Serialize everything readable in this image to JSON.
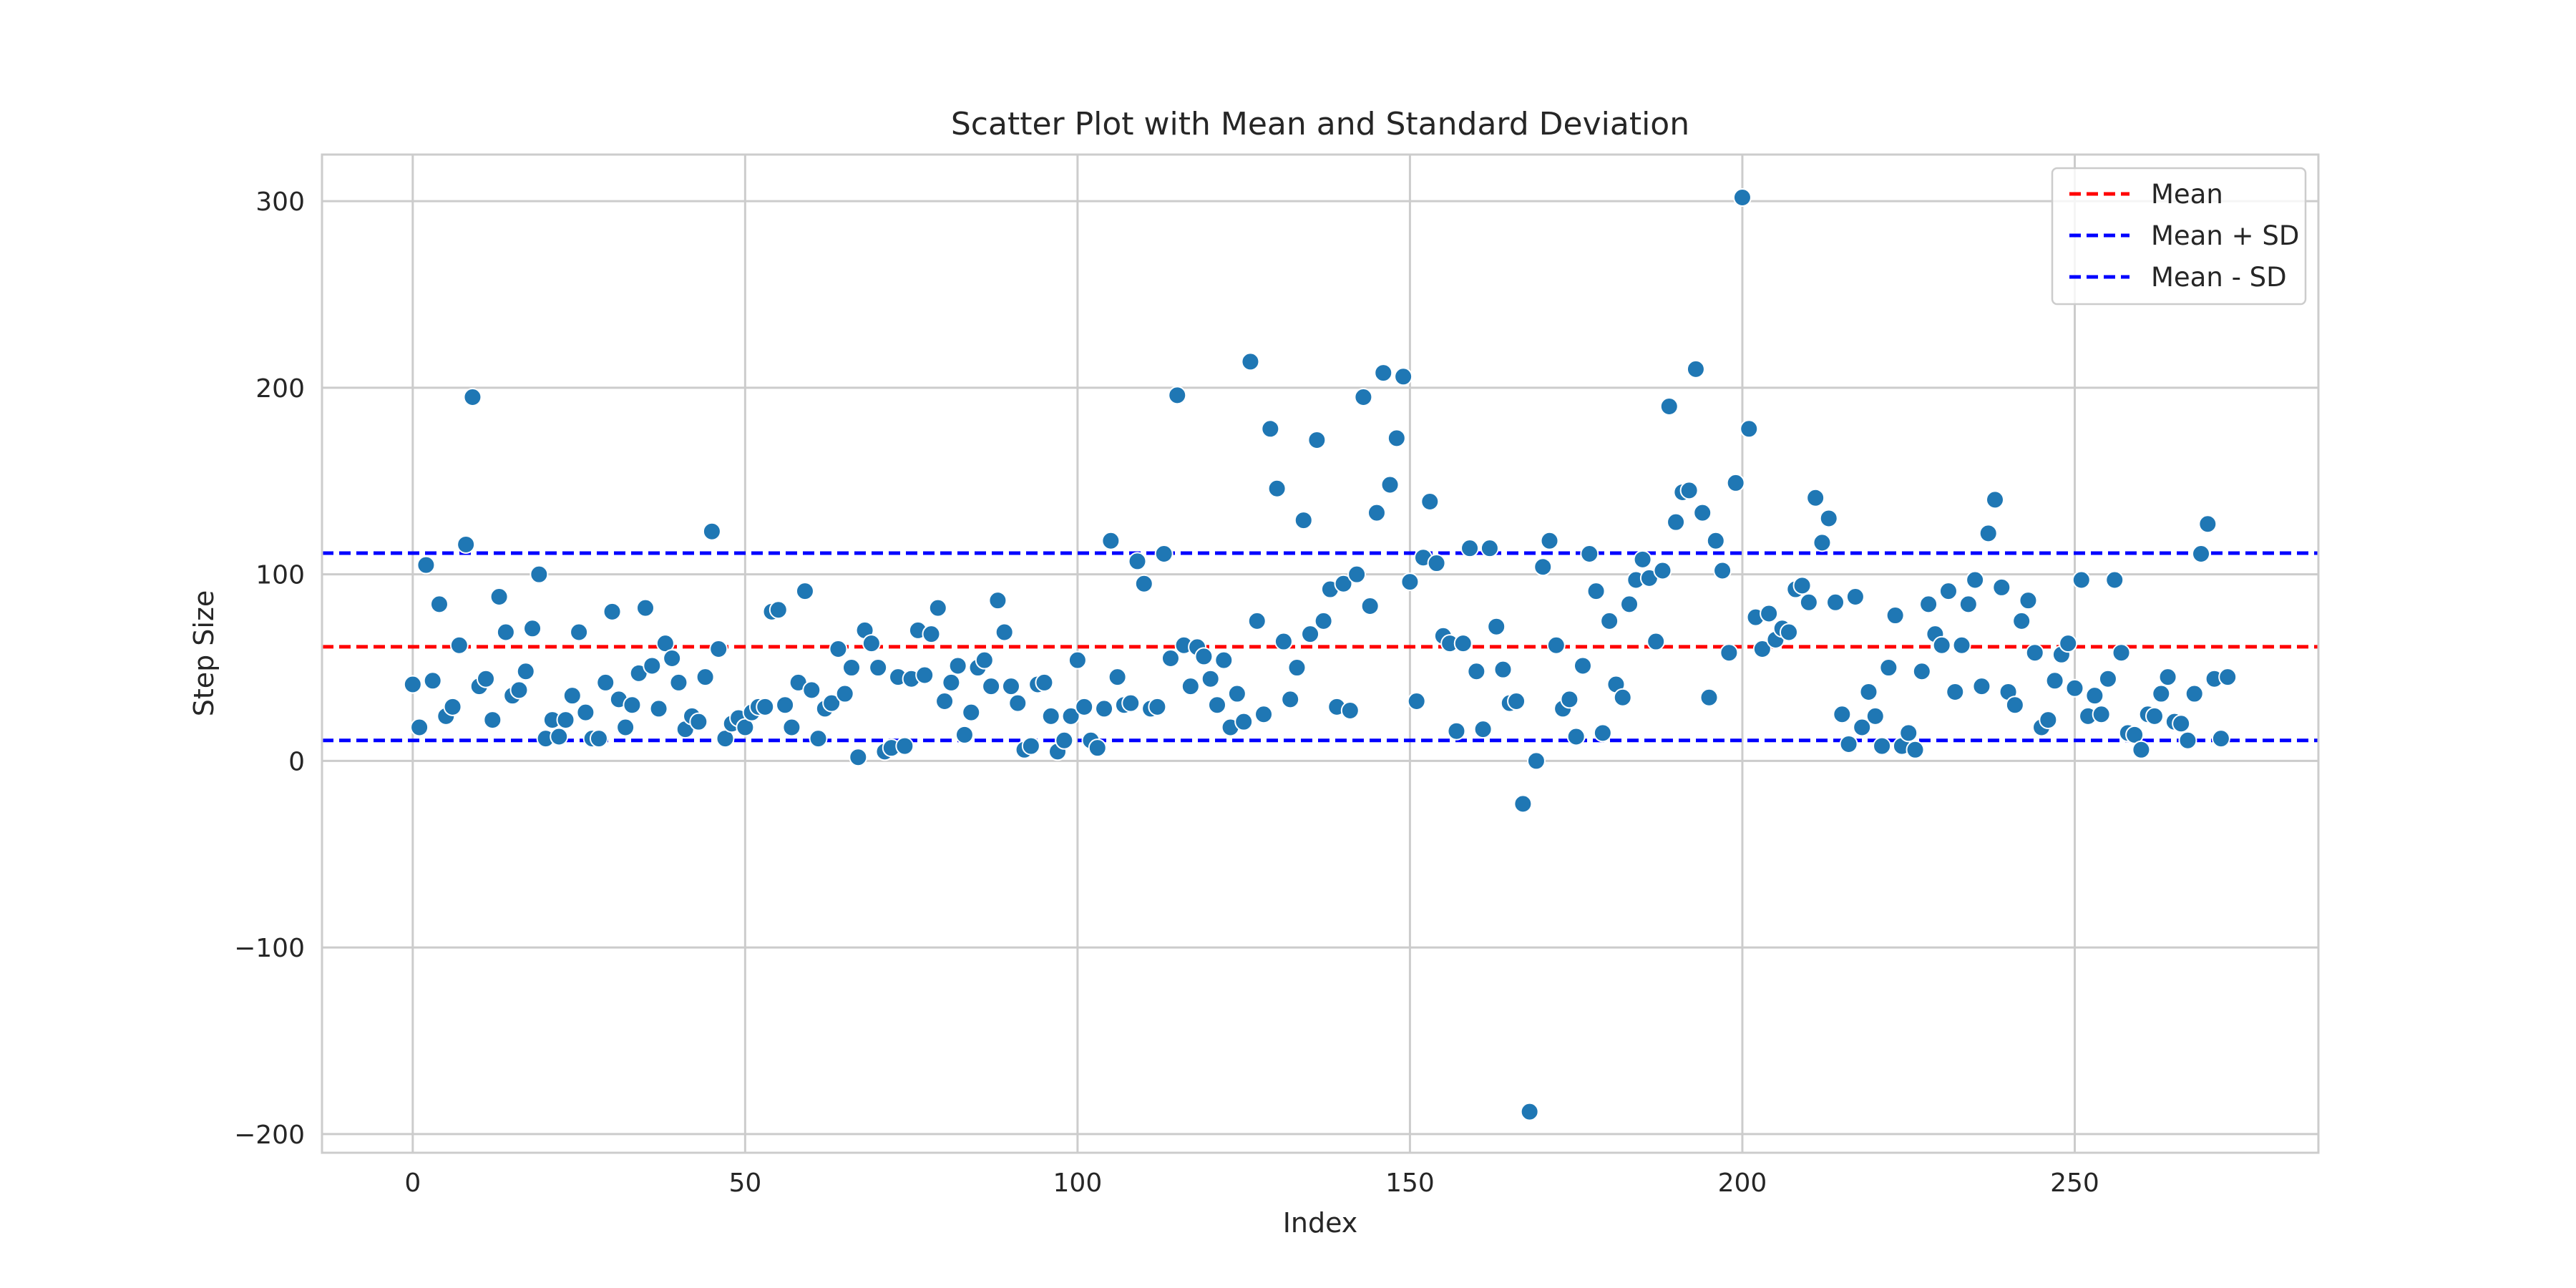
{
  "chart_data": {
    "type": "scatter",
    "title": "Scatter Plot with Mean and Standard Deviation",
    "xlabel": "Index",
    "ylabel": "Step Size",
    "xlim": [
      -13.65,
      286.65
    ],
    "ylim": [
      -210,
      325
    ],
    "x_ticks": [
      0,
      50,
      100,
      150,
      200,
      250
    ],
    "y_ticks": [
      -200,
      -100,
      0,
      100,
      200,
      300
    ],
    "x_tick_labels": [
      "0",
      "50",
      "100",
      "150",
      "200",
      "250"
    ],
    "y_tick_labels": [
      "−200",
      "−100",
      "0",
      "100",
      "200",
      "300"
    ],
    "grid": true,
    "legend_position": "top-right",
    "point_color": "#1f77b4",
    "lines": [
      {
        "name": "Mean",
        "value": 61.2,
        "color": "#ff0000"
      },
      {
        "name": "Mean + SD",
        "value": 111.4,
        "color": "#0000ff"
      },
      {
        "name": "Mean - SD",
        "value": 11.0,
        "color": "#0000ff"
      }
    ],
    "series": [
      {
        "y": [
          41,
          18,
          105,
          43,
          84,
          24,
          29,
          62,
          116,
          195,
          40,
          44,
          22,
          88,
          69,
          35,
          38,
          48,
          71,
          100,
          12,
          22,
          13,
          22,
          35,
          69,
          26,
          12,
          12,
          42,
          80,
          33,
          18,
          30,
          47,
          82,
          51,
          28,
          63,
          55,
          42,
          17,
          24,
          21,
          45,
          123,
          60,
          12,
          20,
          23,
          18,
          26,
          29,
          29,
          80,
          81,
          30,
          18,
          42,
          91,
          38,
          12,
          28,
          31,
          60,
          36,
          50,
          2,
          70,
          63,
          50,
          5,
          7,
          45,
          8,
          44,
          70,
          46,
          68,
          82,
          32,
          42,
          51,
          14,
          26,
          50,
          54,
          40,
          86,
          69,
          40,
          31,
          6,
          8,
          41,
          42,
          24,
          5,
          11,
          24,
          54,
          29,
          11,
          7,
          28,
          118,
          45,
          30,
          31,
          107,
          95,
          28,
          29,
          111,
          55,
          196,
          62,
          40,
          61,
          56,
          44,
          30,
          54,
          18,
          36,
          21,
          214,
          75,
          25,
          178,
          146,
          64,
          33,
          50,
          129,
          68,
          172,
          75,
          92,
          29,
          95,
          27,
          100,
          195,
          83,
          133,
          208,
          148,
          173,
          206,
          96,
          32,
          109,
          139,
          106,
          67,
          63,
          16,
          63,
          114,
          48,
          17,
          114,
          72,
          49,
          31,
          32,
          -23,
          -188,
          0,
          104,
          118,
          62,
          28,
          33,
          13,
          51,
          111,
          91,
          15,
          75,
          41,
          34,
          84,
          97,
          108,
          98,
          64,
          102,
          190,
          128,
          144,
          145,
          210,
          133,
          34,
          118,
          102,
          58,
          149,
          302,
          178,
          77,
          60,
          79,
          65,
          71,
          69,
          92,
          94,
          85,
          141,
          117,
          130,
          85,
          25,
          9,
          88,
          18,
          37,
          24,
          8,
          50,
          78,
          8,
          15,
          6,
          48,
          84,
          68,
          62,
          91,
          37,
          62,
          84,
          97,
          40,
          122,
          140,
          93,
          37,
          30,
          75,
          86,
          58,
          18,
          22,
          43,
          57,
          63,
          39,
          97,
          24,
          35,
          25,
          44,
          97,
          58,
          15,
          14,
          6,
          25,
          24,
          36,
          45,
          21,
          20,
          11,
          36,
          111,
          127,
          44,
          12,
          45
        ]
      }
    ]
  }
}
